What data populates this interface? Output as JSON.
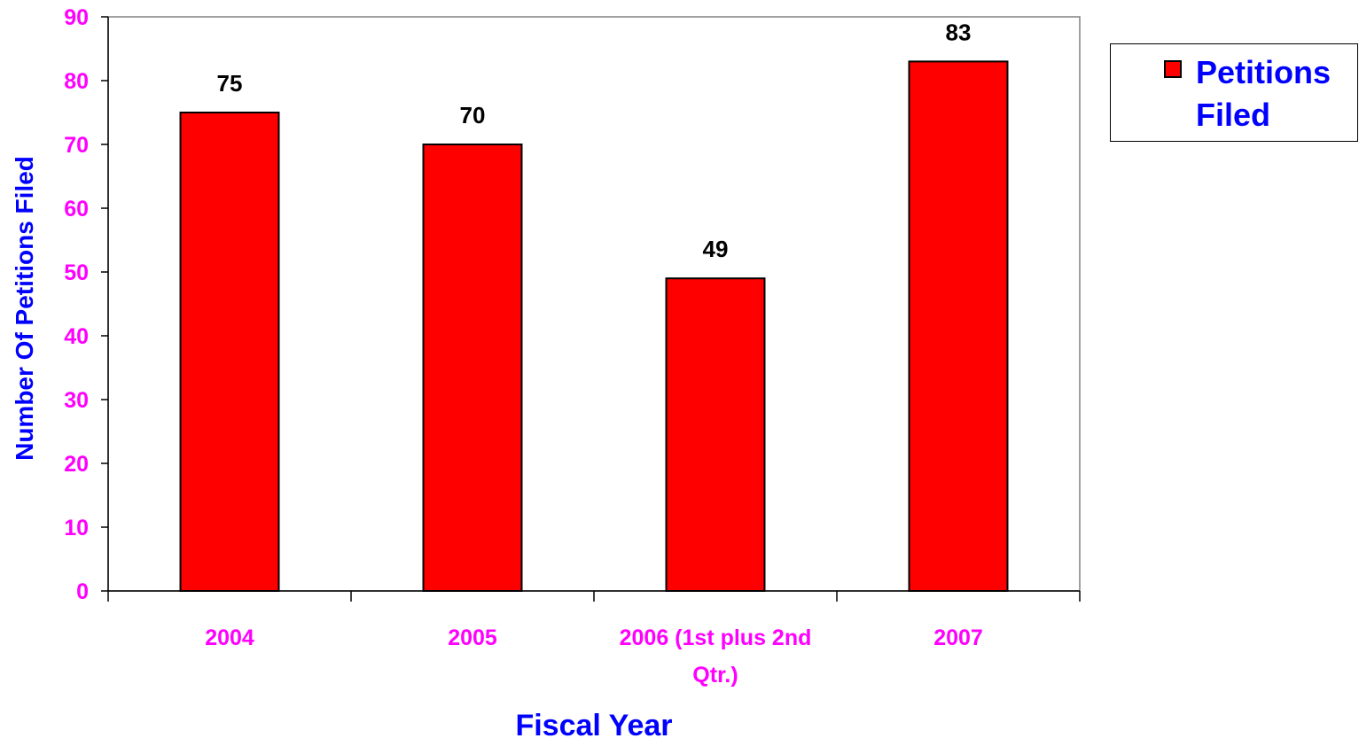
{
  "chart_data": {
    "type": "bar",
    "categories": [
      "2004",
      "2005",
      "2006 (1st plus 2nd Qtr.)",
      "2007"
    ],
    "category_lines": [
      [
        "2004"
      ],
      [
        "2005"
      ],
      [
        "2006 (1st plus 2nd",
        "Qtr.)"
      ],
      [
        "2007"
      ]
    ],
    "series": [
      {
        "name": "Petitions Filed",
        "values": [
          75,
          70,
          49,
          83
        ]
      }
    ],
    "data_labels": [
      "75",
      "70",
      "49",
      "83"
    ],
    "xlabel": "Fiscal Year",
    "ylabel": "Number Of Petitions Filed",
    "ylim": [
      0,
      90
    ],
    "yticks": [
      0,
      10,
      20,
      30,
      40,
      50,
      60,
      70,
      80,
      90
    ],
    "grid": false,
    "legend_position": "top-right",
    "colors": {
      "bar": "#ff0000",
      "bar_outline": "#000000",
      "tick_labels": "#ff00ff",
      "axis_titles": "#0000ff",
      "legend_text": "#0000ff",
      "data_labels": "#000000",
      "plot_border": "#808080"
    }
  }
}
